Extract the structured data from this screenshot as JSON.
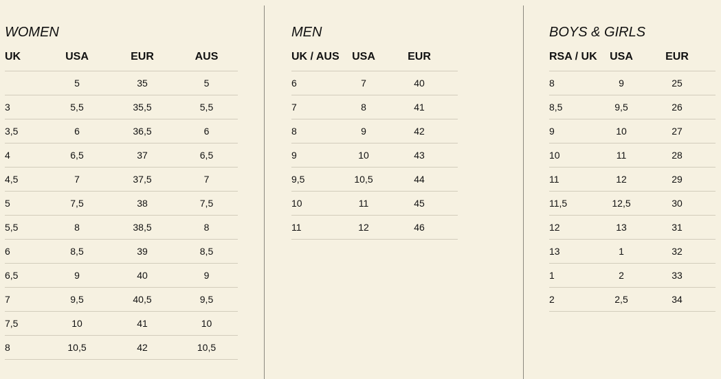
{
  "women": {
    "title": "WOMEN",
    "headers": [
      "UK",
      "USA",
      "EUR",
      "AUS"
    ],
    "rows": [
      [
        "",
        "5",
        "35",
        "5"
      ],
      [
        "3",
        "5,5",
        "35,5",
        "5,5"
      ],
      [
        "3,5",
        "6",
        "36,5",
        "6"
      ],
      [
        "4",
        "6,5",
        "37",
        "6,5"
      ],
      [
        "4,5",
        "7",
        "37,5",
        "7"
      ],
      [
        "5",
        "7,5",
        "38",
        "7,5"
      ],
      [
        "5,5",
        "8",
        "38,5",
        "8"
      ],
      [
        "6",
        "8,5",
        "39",
        "8,5"
      ],
      [
        "6,5",
        "9",
        "40",
        "9"
      ],
      [
        "7",
        "9,5",
        "40,5",
        "9,5"
      ],
      [
        "7,5",
        "10",
        "41",
        "10"
      ],
      [
        "8",
        "10,5",
        "42",
        "10,5"
      ]
    ]
  },
  "men": {
    "title": "MEN",
    "headers": [
      "UK / AUS",
      "USA",
      "EUR"
    ],
    "rows": [
      [
        "6",
        "7",
        "40"
      ],
      [
        "7",
        "8",
        "41"
      ],
      [
        "8",
        "9",
        "42"
      ],
      [
        "9",
        "10",
        "43"
      ],
      [
        "9,5",
        "10,5",
        "44"
      ],
      [
        "10",
        "11",
        "45"
      ],
      [
        "11",
        "12",
        "46"
      ]
    ]
  },
  "kids": {
    "title": "BOYS & GIRLS",
    "headers": [
      "RSA / UK",
      "USA",
      "EUR"
    ],
    "rows": [
      [
        "8",
        "9",
        "25"
      ],
      [
        "8,5",
        "9,5",
        "26"
      ],
      [
        "9",
        "10",
        "27"
      ],
      [
        "10",
        "11",
        "28"
      ],
      [
        "11",
        "12",
        "29"
      ],
      [
        "11,5",
        "12,5",
        "30"
      ],
      [
        "12",
        "13",
        "31"
      ],
      [
        "13",
        "1",
        "32"
      ],
      [
        "1",
        "2",
        "33"
      ],
      [
        "2",
        "2,5",
        "34"
      ]
    ]
  }
}
